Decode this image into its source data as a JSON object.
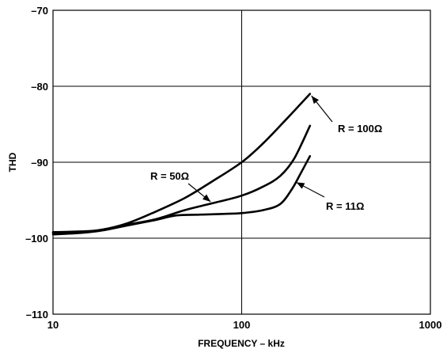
{
  "chart_data": {
    "type": "line",
    "xscale": "log",
    "xlim": [
      10,
      1000
    ],
    "ylim": [
      -110,
      -70
    ],
    "xticks": [
      "10",
      "100",
      "1000"
    ],
    "yticks": [
      "–70",
      "–80",
      "–90",
      "–100",
      "–110"
    ],
    "xlabel": "FREQUENCY – kHz",
    "ylabel": "THD",
    "grid": true,
    "series": [
      {
        "name": "R = 100Ω",
        "points": [
          [
            10,
            -99.2
          ],
          [
            14,
            -99.1
          ],
          [
            18,
            -98.9
          ],
          [
            25,
            -98.0
          ],
          [
            35,
            -96.5
          ],
          [
            50,
            -94.7
          ],
          [
            70,
            -92.5
          ],
          [
            100,
            -90.0
          ],
          [
            130,
            -87.5
          ],
          [
            170,
            -84.5
          ],
          [
            230,
            -81.0
          ]
        ]
      },
      {
        "name": "R = 50Ω",
        "points": [
          [
            10,
            -99.3
          ],
          [
            14,
            -99.2
          ],
          [
            18,
            -98.9
          ],
          [
            25,
            -98.2
          ],
          [
            35,
            -97.5
          ],
          [
            50,
            -96.3
          ],
          [
            70,
            -95.4
          ],
          [
            100,
            -94.4
          ],
          [
            130,
            -93.2
          ],
          [
            160,
            -91.8
          ],
          [
            190,
            -89.5
          ],
          [
            230,
            -85.2
          ]
        ]
      },
      {
        "name": "R = 11Ω",
        "points": [
          [
            10,
            -99.5
          ],
          [
            14,
            -99.3
          ],
          [
            18,
            -99.0
          ],
          [
            25,
            -98.3
          ],
          [
            35,
            -97.6
          ],
          [
            45,
            -97.0
          ],
          [
            60,
            -96.9
          ],
          [
            80,
            -96.8
          ],
          [
            100,
            -96.7
          ],
          [
            130,
            -96.3
          ],
          [
            160,
            -95.5
          ],
          [
            185,
            -93.5
          ],
          [
            205,
            -91.5
          ],
          [
            230,
            -89.2
          ]
        ]
      }
    ],
    "annotations": [
      {
        "text": "R = 100Ω",
        "series": 0,
        "at": [
          230,
          -81.0
        ]
      },
      {
        "text": "R = 50Ω",
        "series": 1,
        "at": [
          70,
          -95.4
        ]
      },
      {
        "text": "R = 11Ω",
        "series": 2,
        "at": [
          190,
          -92.5
        ]
      }
    ]
  }
}
